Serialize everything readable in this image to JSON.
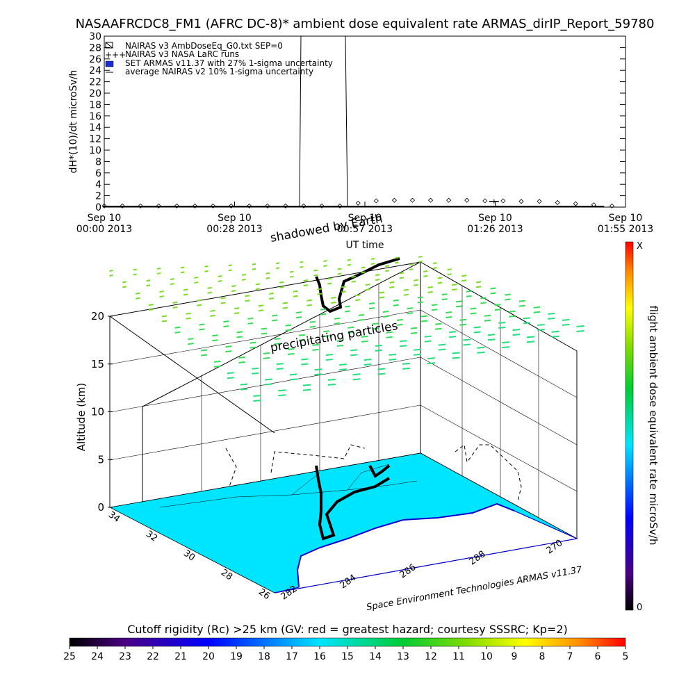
{
  "title": "NASAAFRCDC8_FM1 (AFRC DC-8)* ambient dose equivalent rate ARMAS_dirIP_Report_59780",
  "top_plot": {
    "ylabel": "dH*(10)/dt microSv/h",
    "xlabel": "UT time",
    "yticks": [
      "0",
      "2",
      "4",
      "6",
      "8",
      "10",
      "12",
      "14",
      "16",
      "18",
      "20",
      "22",
      "24",
      "26",
      "28",
      "30"
    ],
    "xticks": [
      {
        "l1": "Sep 10",
        "l2": "00:00 2013"
      },
      {
        "l1": "Sep 10",
        "l2": "00:28 2013"
      },
      {
        "l1": "Sep 10",
        "l2": "00:57 2013"
      },
      {
        "l1": "Sep 10",
        "l2": "01:26 2013"
      },
      {
        "l1": "Sep 10",
        "l2": "01:55 2013"
      }
    ],
    "legend": [
      "NAIRAS v3 AmbDoseEq_G0.txt SEP=0",
      "NAIRAS v3 NASA LaRC runs",
      "SET ARMAS v11.37 with 27% 1-sigma uncertainty",
      "average NAIRAS v2 10% 1-sigma uncertainty"
    ]
  },
  "chart_data": [
    {
      "type": "scatter",
      "title": "NASAAFRCDC8_FM1 (AFRC DC-8)* ambient dose equivalent rate ARMAS_dirIP_Report_59780",
      "xlabel": "UT time",
      "ylabel": "dH*(10)/dt microSv/h",
      "x_range": [
        "Sep 10 00:00 2013",
        "Sep 10 01:55 2013"
      ],
      "ylim": [
        0,
        30
      ],
      "series": [
        {
          "name": "NAIRAS v3 AmbDoseEq_G0.txt SEP=0",
          "x_min": [
            0,
            4,
            8,
            12,
            16,
            20,
            24,
            28,
            32,
            36,
            40,
            44,
            48,
            52,
            56,
            60,
            64,
            68,
            72,
            76,
            80,
            84,
            88,
            92,
            96,
            100,
            104,
            108,
            112
          ],
          "values": [
            0.2,
            0.2,
            0.2,
            0.2,
            0.2,
            0.2,
            0.2,
            0.2,
            0.2,
            0.2,
            0.2,
            0.2,
            0.2,
            0.2,
            0.7,
            1.1,
            1.2,
            1.2,
            1.2,
            1.2,
            1.2,
            1.1,
            1.1,
            1.0,
            1.0,
            0.8,
            0.6,
            0.4,
            0.2
          ]
        },
        {
          "name": "SET ARMAS v11.37 with 27% 1-sigma uncertainty",
          "x_min": [
            0,
            10,
            20,
            30,
            40,
            50,
            55,
            60,
            70,
            80,
            90,
            100,
            110
          ],
          "values": [
            0.1,
            0.1,
            0.1,
            0.1,
            0.1,
            0.1,
            0.1,
            0.1,
            0.1,
            0.1,
            0.1,
            0.1,
            0.1
          ]
        },
        {
          "name": "average NAIRAS v2 10% 1-sigma uncertainty",
          "x_min": [
            86
          ],
          "values": [
            1.0
          ]
        }
      ]
    },
    {
      "type": "scatter",
      "ylabel": "Altitude (km)",
      "zlim": [
        0,
        20
      ],
      "z_ticks": [
        "0",
        "5",
        "10",
        "15",
        "20"
      ],
      "lat_ticks": [
        "34",
        "32",
        "30",
        "28",
        "26"
      ],
      "lon_ticks": [
        "282",
        "284",
        "286",
        "288",
        "270"
      ],
      "annotations": [
        "shadowed by Earth",
        "precipitating particles"
      ],
      "credit": "Space Environment Technologies ARMAS v11.37",
      "colorbar_label": "flight ambient dose equivalent rate microSv/h",
      "colorbar_ends": [
        "0",
        "X"
      ]
    }
  ],
  "rigidity_bar": {
    "label": "Cutoff rigidity (Rc) >25 km (GV: red = greatest hazard; courtesy SSSRC; Kp=2)",
    "ticks": [
      "25",
      "24",
      "23",
      "22",
      "21",
      "20",
      "19",
      "18",
      "17",
      "16",
      "15",
      "14",
      "13",
      "12",
      "11",
      "10",
      "9",
      "8",
      "7",
      "6",
      "5"
    ]
  },
  "colors": {
    "land": "#00e5ff",
    "coast": "#0000cc",
    "particles": "#55dd22",
    "grid": "#000000"
  }
}
